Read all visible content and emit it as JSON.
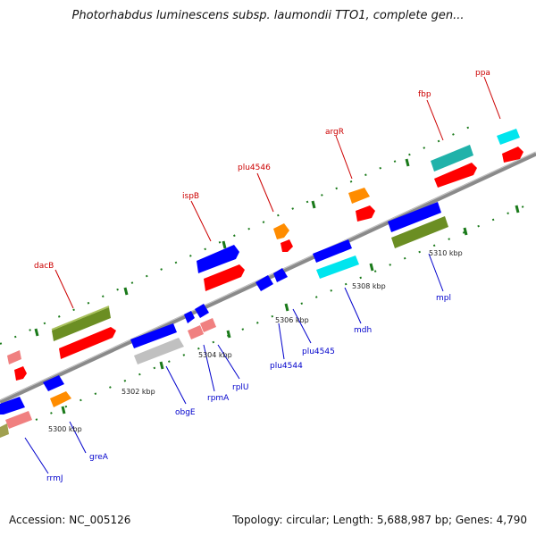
{
  "title": "Photorhabdus luminescens subsp. laumondii TTO1, complete gen...",
  "footer": {
    "accession": "Accession: NC_005126",
    "summary": "Topology: circular; Length: 5,688,987 bp; Genes: 4,790"
  },
  "colors": {
    "backbone": "#808080",
    "tick": "#1a7a1a",
    "top_label": "#cc0000",
    "bottom_label": "#0000cc"
  },
  "scale_labels": [
    "5300 kbp",
    "5302 kbp",
    "5304 kbp",
    "5306 kbp",
    "5308 kbp",
    "5310 kbp"
  ],
  "top_labels": [
    "dacB",
    "ispB",
    "plu4546",
    "argR",
    "fbp",
    "ppa"
  ],
  "bottom_labels": [
    "rrmJ",
    "greA",
    "obgE",
    "rpmA",
    "rplU",
    "plu4544",
    "plu4545",
    "mdh",
    "mpl"
  ]
}
